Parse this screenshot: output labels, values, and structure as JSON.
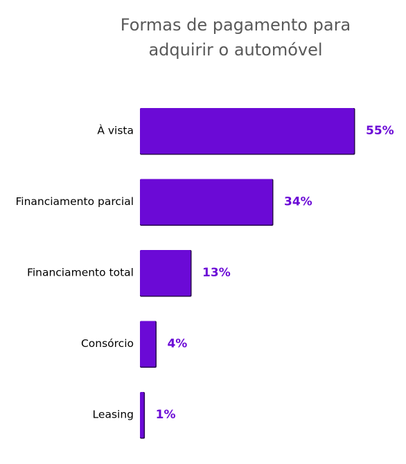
{
  "chart_data": {
    "type": "bar",
    "orientation": "horizontal",
    "title": [
      "Formas de pagamento para",
      "adquirir o automóvel"
    ],
    "categories": [
      "À vista",
      "Financiamento parcial",
      "Financiamento total",
      "Consórcio",
      "Leasing"
    ],
    "values": [
      55,
      34,
      13,
      4,
      1
    ],
    "value_labels": [
      "55%",
      "34%",
      "13%",
      "4%",
      "1%"
    ],
    "xlim": [
      0,
      55
    ],
    "grid": false,
    "legend": "none",
    "bar_color": "#6b0ad6",
    "label_color": "#6b0ad6"
  }
}
